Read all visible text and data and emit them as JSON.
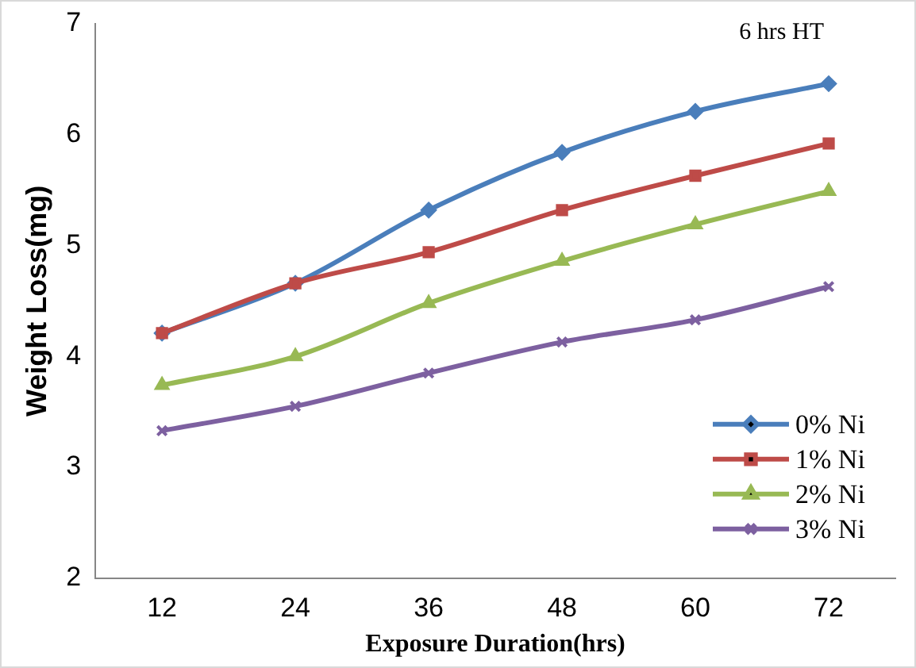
{
  "chart_data": {
    "type": "line",
    "xlabel": "Exposure Duration(hrs)",
    "ylabel": "Weight Loss(mg)",
    "annotations": [
      "6 hrs HT"
    ],
    "categories": [
      "12",
      "24",
      "36",
      "48",
      "60",
      "72"
    ],
    "series": [
      {
        "name": "0% Ni",
        "color": "#4a7ebb",
        "marker": "diamond",
        "values": [
          4.21,
          4.66,
          5.32,
          5.84,
          6.21,
          6.46
        ]
      },
      {
        "name": "1% Ni",
        "color": "#be4b48",
        "marker": "square",
        "values": [
          4.21,
          4.66,
          4.94,
          5.32,
          5.63,
          5.92
        ]
      },
      {
        "name": "2% Ni",
        "color": "#98b954",
        "marker": "triangle",
        "values": [
          3.74,
          4.0,
          4.48,
          4.86,
          5.19,
          5.49
        ]
      },
      {
        "name": "3% Ni",
        "color": "#7d60a0",
        "marker": "cross",
        "values": [
          3.33,
          3.55,
          3.85,
          4.13,
          4.33,
          4.63
        ]
      }
    ],
    "ylim": [
      2,
      7
    ],
    "yticks": [
      2,
      3,
      4,
      5,
      6,
      7
    ],
    "grid": false,
    "legend": "bottom right"
  }
}
